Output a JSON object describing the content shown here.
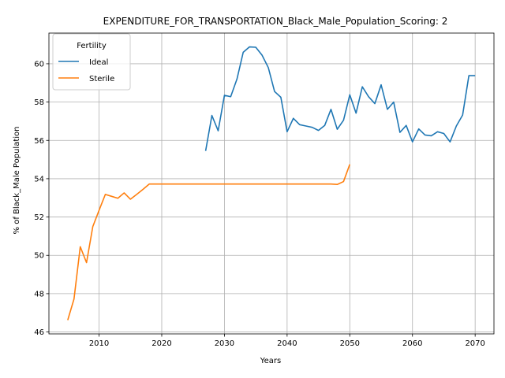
{
  "chart_data": {
    "type": "line",
    "title": "EXPENDITURE_FOR_TRANSPORTATION_Black_Male_Population_Scoring: 2",
    "xlabel": "Years",
    "ylabel": "% of Black_Male Population",
    "xlim": [
      2002,
      2073
    ],
    "ylim": [
      45.9,
      61.6
    ],
    "xticks": [
      2010,
      2020,
      2030,
      2040,
      2050,
      2060,
      2070
    ],
    "yticks": [
      46,
      48,
      50,
      52,
      54,
      56,
      58,
      60
    ],
    "grid": true,
    "legend": {
      "title": "Fertility",
      "placement": "top-left"
    },
    "series": [
      {
        "name": "Ideal",
        "color": "#1f77b4",
        "x": [
          2027,
          2028,
          2029,
          2030,
          2031,
          2032,
          2033,
          2034,
          2035,
          2036,
          2037,
          2038,
          2039,
          2040,
          2041,
          2042,
          2043,
          2044,
          2045,
          2046,
          2047,
          2048,
          2049,
          2050,
          2051,
          2052,
          2053,
          2054,
          2055,
          2056,
          2057,
          2058,
          2059,
          2060,
          2061,
          2062,
          2063,
          2064,
          2065,
          2066,
          2067,
          2068,
          2069,
          2070
        ],
        "y": [
          55.45,
          57.3,
          56.5,
          58.35,
          58.28,
          59.2,
          60.6,
          60.88,
          60.86,
          60.45,
          59.8,
          58.55,
          58.25,
          56.45,
          57.15,
          56.82,
          56.75,
          56.68,
          56.52,
          56.78,
          57.62,
          56.58,
          57.05,
          58.38,
          57.42,
          58.8,
          58.28,
          57.92,
          58.9,
          57.62,
          58.0,
          56.42,
          56.78,
          55.92,
          56.6,
          56.28,
          56.24,
          56.45,
          56.36,
          55.92,
          56.75,
          57.32,
          59.38,
          59.38
        ]
      },
      {
        "name": "Sterile",
        "color": "#ff7f0e",
        "x": [
          2005,
          2006,
          2007,
          2008,
          2009,
          2010,
          2011,
          2012,
          2013,
          2014,
          2015,
          2016,
          2017,
          2018,
          2019,
          2020,
          2025,
          2030,
          2035,
          2040,
          2045,
          2046,
          2047,
          2048,
          2049,
          2050
        ],
        "y": [
          46.62,
          47.72,
          50.45,
          49.62,
          51.5,
          52.35,
          53.18,
          53.08,
          52.98,
          53.26,
          52.93,
          53.18,
          53.44,
          53.72,
          53.72,
          53.72,
          53.72,
          53.72,
          53.72,
          53.72,
          53.72,
          53.72,
          53.72,
          53.7,
          53.85,
          54.75
        ]
      }
    ]
  }
}
